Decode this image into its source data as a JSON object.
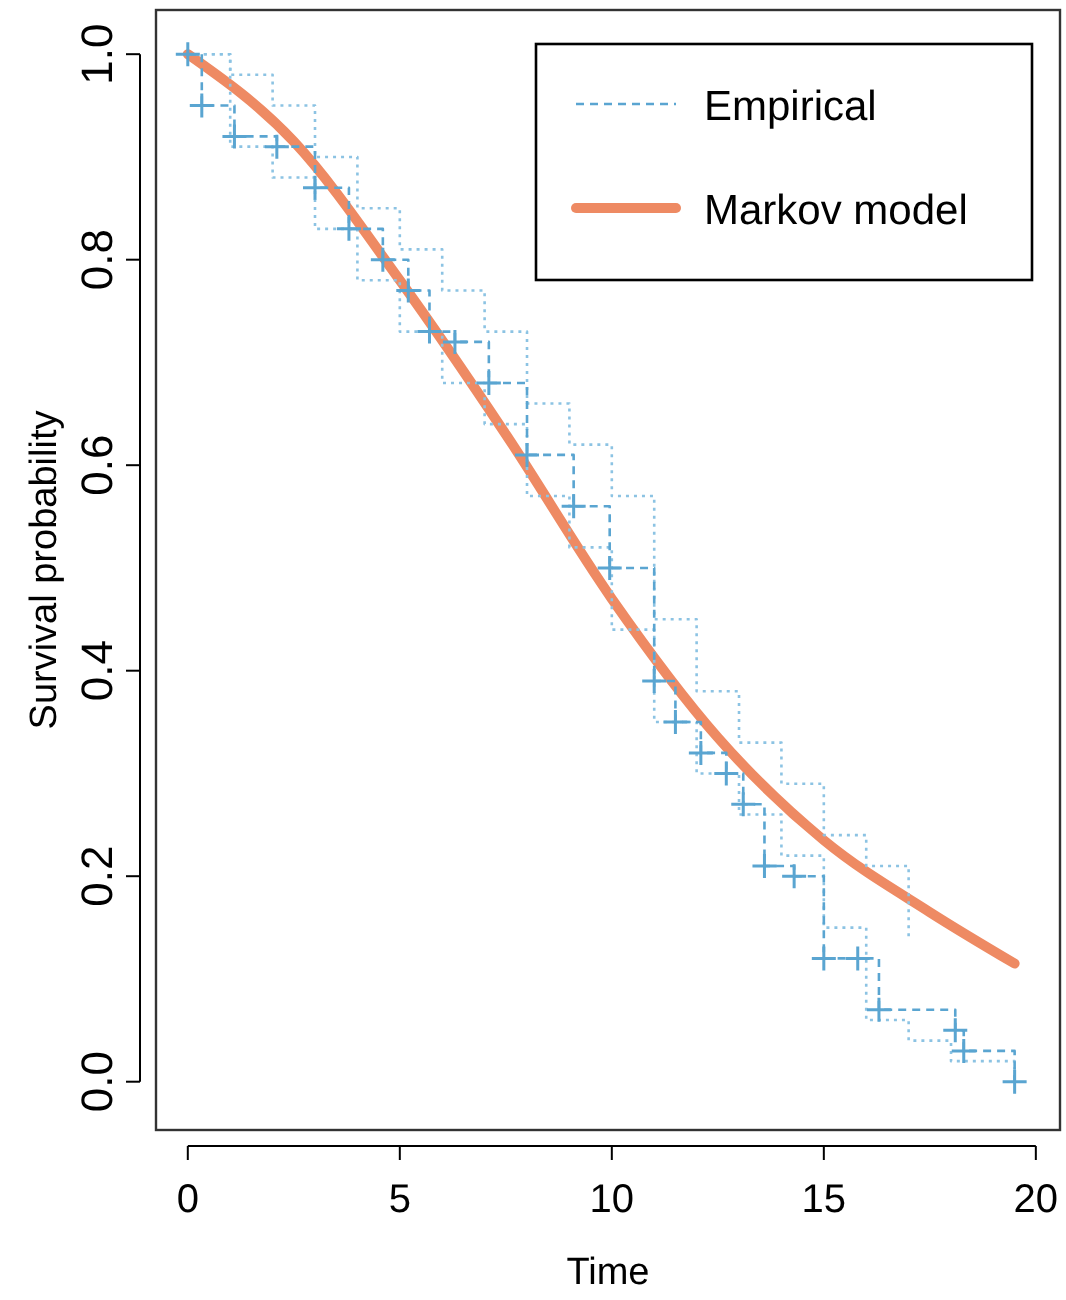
{
  "chart_data": {
    "type": "line",
    "xlabel": "Time",
    "ylabel": "Survival probability",
    "xlim": [
      -0.75,
      20.57
    ],
    "ylim": [
      -0.047,
      1.043
    ],
    "xticks": [
      0,
      5,
      10,
      15,
      20
    ],
    "yticks": [
      {
        "value": 0,
        "label": "0.0"
      },
      {
        "value": 0.2,
        "label": "0.2"
      },
      {
        "value": 0.4,
        "label": "0.4"
      },
      {
        "value": 0.6,
        "label": "0.6"
      },
      {
        "value": 0.8,
        "label": "0.8"
      },
      {
        "value": 1,
        "label": "1.0"
      }
    ],
    "grid": false,
    "legend": "top right",
    "series": [
      {
        "name": "Empirical",
        "type": "step",
        "color": "#5aa5d1",
        "line_style": "dashed",
        "marker": "cross",
        "x": [
          0,
          0.33,
          1.1,
          2.1,
          3.0,
          3.8,
          4.6,
          5.2,
          5.7,
          6.3,
          7.1,
          8.0,
          9.1,
          9.95,
          11.0,
          11.5,
          12.1,
          12.7,
          13.1,
          13.6,
          14.3,
          15.0,
          15.8,
          16.3,
          18.1,
          18.3,
          19.5
        ],
        "values": [
          1.0,
          0.95,
          0.92,
          0.91,
          0.87,
          0.83,
          0.8,
          0.77,
          0.73,
          0.72,
          0.68,
          0.61,
          0.56,
          0.5,
          0.39,
          0.35,
          0.32,
          0.3,
          0.27,
          0.21,
          0.2,
          0.12,
          0.12,
          0.07,
          0.05,
          0.03,
          0.0
        ]
      },
      {
        "type": "step",
        "color": "#8cc3e3",
        "line_style": "dotted",
        "marker": "none",
        "x": [
          0,
          1,
          2,
          3,
          4,
          5,
          6,
          7,
          8,
          9,
          10,
          11,
          12,
          13,
          14,
          15,
          16,
          17
        ],
        "values": [
          1.0,
          0.98,
          0.95,
          0.9,
          0.85,
          0.81,
          0.77,
          0.73,
          0.66,
          0.62,
          0.57,
          0.45,
          0.38,
          0.33,
          0.29,
          0.24,
          0.21,
          0.14
        ]
      },
      {
        "type": "step",
        "color": "#8cc3e3",
        "line_style": "dotted",
        "marker": "none",
        "x": [
          0,
          1,
          2,
          3,
          4,
          5,
          6,
          7,
          8,
          9,
          10,
          11,
          12,
          13,
          14,
          15,
          16,
          17,
          18,
          19.5
        ],
        "values": [
          1.0,
          0.91,
          0.88,
          0.83,
          0.78,
          0.73,
          0.68,
          0.64,
          0.57,
          0.52,
          0.44,
          0.35,
          0.3,
          0.26,
          0.22,
          0.15,
          0.06,
          0.04,
          0.02,
          0.0
        ]
      },
      {
        "name": "Markov model",
        "color": "#ee8a63",
        "line_style": "solid",
        "marker": "none",
        "x": [
          0,
          2.5,
          5,
          7.5,
          10,
          12.5,
          15,
          17.5,
          19.5
        ],
        "values": [
          1.0,
          0.915,
          0.78,
          0.63,
          0.47,
          0.335,
          0.235,
          0.165,
          0.115
        ]
      }
    ]
  }
}
